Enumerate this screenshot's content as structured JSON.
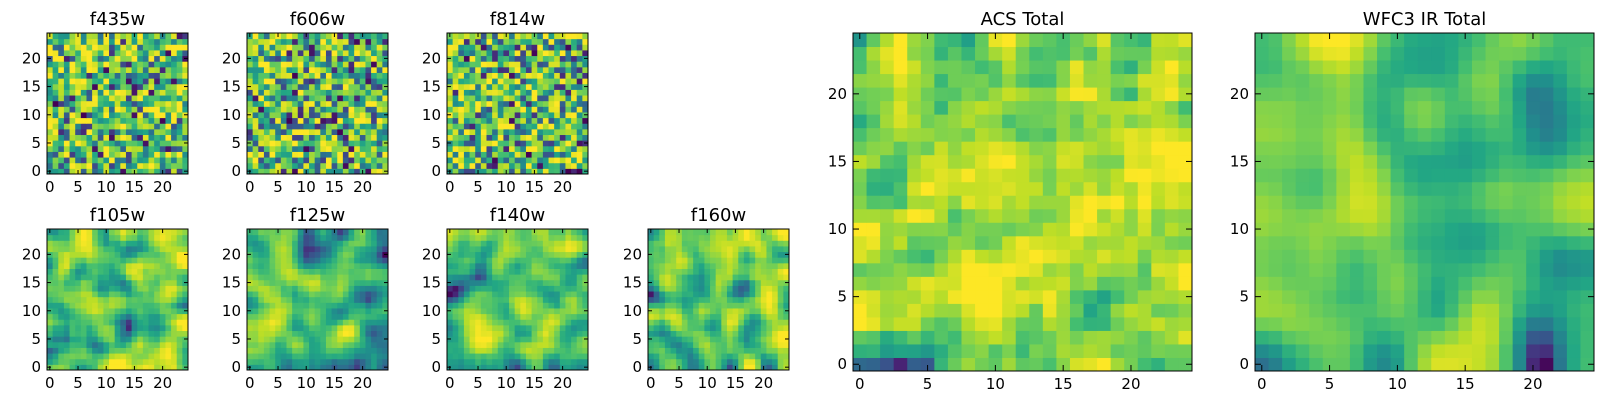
{
  "chart_data": [
    {
      "type": "heatmap",
      "title": "f435w",
      "size": 25,
      "xticks": [
        0,
        5,
        10,
        15,
        20
      ],
      "yticks": [
        0,
        5,
        10,
        15,
        20
      ],
      "xlim": [
        -0.5,
        24.5
      ],
      "ylim": [
        -0.5,
        24.5
      ],
      "colormap": "viridis",
      "smooth": 0,
      "seed": 11,
      "bias": 0.05,
      "value_note": "pixel noise map, values normalized 0-1 (estimated pattern)"
    },
    {
      "type": "heatmap",
      "title": "f606w",
      "size": 25,
      "xticks": [
        0,
        5,
        10,
        15,
        20
      ],
      "yticks": [
        0,
        5,
        10,
        15,
        20
      ],
      "xlim": [
        -0.5,
        24.5
      ],
      "ylim": [
        -0.5,
        24.5
      ],
      "colormap": "viridis",
      "smooth": 0,
      "seed": 23,
      "bias": 0.05,
      "value_note": "pixel noise map, values normalized 0-1 (estimated pattern)"
    },
    {
      "type": "heatmap",
      "title": "f814w",
      "size": 25,
      "xticks": [
        0,
        5,
        10,
        15,
        20
      ],
      "yticks": [
        0,
        5,
        10,
        15,
        20
      ],
      "xlim": [
        -0.5,
        24.5
      ],
      "ylim": [
        -0.5,
        24.5
      ],
      "colormap": "viridis",
      "smooth": 0,
      "seed": 37,
      "bias": 0.05,
      "value_note": "pixel noise map, values normalized 0-1 (estimated pattern)"
    },
    {
      "type": "heatmap",
      "title": "f105w",
      "size": 25,
      "xticks": [
        0,
        5,
        10,
        15,
        20
      ],
      "yticks": [
        0,
        5,
        10,
        15,
        20
      ],
      "xlim": [
        -0.5,
        24.5
      ],
      "ylim": [
        -0.5,
        24.5
      ],
      "colormap": "viridis",
      "smooth": 2,
      "seed": 41,
      "bias": 0.12,
      "value_note": "smoothed noise map, values normalized 0-1 (estimated pattern)"
    },
    {
      "type": "heatmap",
      "title": "f125w",
      "size": 25,
      "xticks": [
        0,
        5,
        10,
        15,
        20
      ],
      "yticks": [
        0,
        5,
        10,
        15,
        20
      ],
      "xlim": [
        -0.5,
        24.5
      ],
      "ylim": [
        -0.5,
        24.5
      ],
      "colormap": "viridis",
      "smooth": 2,
      "seed": 53,
      "bias": 0.0,
      "value_note": "smoothed noise map, values normalized 0-1 (estimated pattern)"
    },
    {
      "type": "heatmap",
      "title": "f140w",
      "size": 25,
      "xticks": [
        0,
        5,
        10,
        15,
        20
      ],
      "yticks": [
        0,
        5,
        10,
        15,
        20
      ],
      "xlim": [
        -0.5,
        24.5
      ],
      "ylim": [
        -0.5,
        24.5
      ],
      "colormap": "viridis",
      "smooth": 2,
      "seed": 67,
      "bias": 0.02,
      "value_note": "smoothed noise map, values normalized 0-1 (estimated pattern)"
    },
    {
      "type": "heatmap",
      "title": "f160w",
      "size": 25,
      "xticks": [
        0,
        5,
        10,
        15,
        20
      ],
      "yticks": [
        0,
        5,
        10,
        15,
        20
      ],
      "xlim": [
        -0.5,
        24.5
      ],
      "ylim": [
        -0.5,
        24.5
      ],
      "colormap": "viridis",
      "smooth": 2,
      "seed": 79,
      "bias": 0.06,
      "value_note": "smoothed noise map, values normalized 0-1 (estimated pattern)"
    },
    {
      "type": "heatmap",
      "title": "ACS Total",
      "size": 25,
      "xticks": [
        0,
        5,
        10,
        15,
        20
      ],
      "yticks": [
        0,
        5,
        10,
        15,
        20
      ],
      "xlim": [
        -0.5,
        24.5
      ],
      "ylim": [
        -0.5,
        24.5
      ],
      "colormap": "viridis",
      "smooth": 1,
      "seed": 97,
      "bias": 0.1,
      "value_note": "sum of ACS bands, values normalized 0-1 (estimated pattern)"
    },
    {
      "type": "heatmap",
      "title": "WFC3 IR Total",
      "size": 25,
      "xticks": [
        0,
        5,
        10,
        15,
        20
      ],
      "yticks": [
        0,
        5,
        10,
        15,
        20
      ],
      "xlim": [
        -0.5,
        24.5
      ],
      "ylim": [
        -0.5,
        24.5
      ],
      "colormap": "viridis",
      "smooth": 3,
      "seed": 131,
      "bias": 0.02,
      "value_note": "sum of IR bands, values normalized 0-1 (estimated pattern)"
    }
  ]
}
